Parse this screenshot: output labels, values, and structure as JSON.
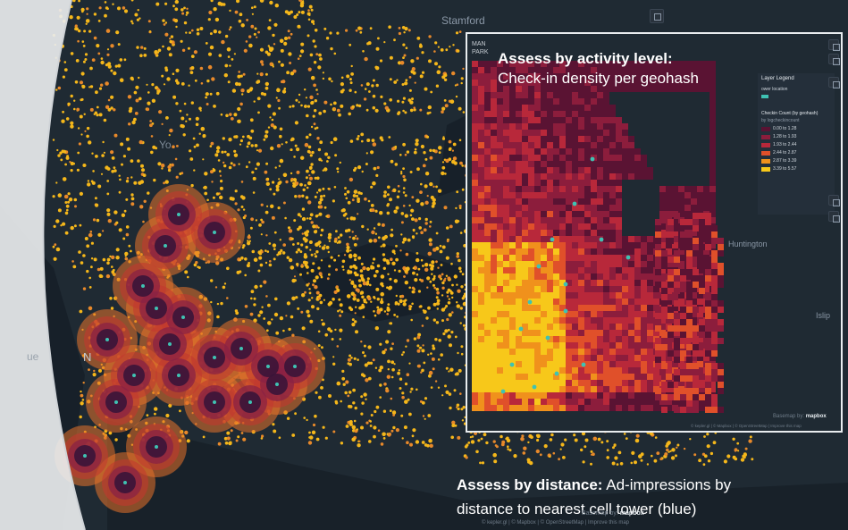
{
  "main_map": {
    "place_labels": [
      "Stamford",
      "Yo",
      "N",
      "ue"
    ],
    "attribution": {
      "basemap_prefix": "Basemap by:",
      "mapbox_logo": "mapbox",
      "credits": "© kepler.gl | © Mapbox | © OpenStreetMap | Improve this map"
    }
  },
  "inset_map": {
    "place_labels": [
      "MAN",
      "PARK",
      "Huntington",
      "Islip"
    ],
    "legend": {
      "title": "Layer Legend",
      "point_layer": "ower location",
      "color_title": "Checkin Count (by geohash)",
      "color_by": "by logcheckincount",
      "ranges": [
        "0.00 to 1.28",
        "1.28 to 1.93",
        "1.93 to 2.44",
        "2.44 to 2.87",
        "2.87 to 3.39",
        "3.39 to 5.57"
      ],
      "colors": [
        "#5a1333",
        "#8c1d3c",
        "#b8283a",
        "#e0502a",
        "#f0911c",
        "#f7c81a"
      ],
      "point_color": "#3fc2b3"
    },
    "attribution": {
      "basemap_prefix": "Basemap by:",
      "mapbox_logo": "mapbox",
      "credits": "© kepler.gl | © Mapbox | © OpenStreetMap | Improve this map"
    }
  },
  "captions": {
    "activity_title": "Assess by activity level:",
    "activity_body": "Check-in density per geohash",
    "distance_title": "Assess by distance:",
    "distance_body_1": " Ad-impressions by",
    "distance_body_2": "distance to nearest cell tower (blue)"
  },
  "colors": {
    "basemap": "#1f2a33",
    "water": "#172029",
    "point_yellow": "#f5b71a",
    "density_dark": "#3a1438",
    "density_mid": "#8a2244",
    "density_orange": "#e8722a",
    "tower": "#3fc2b3"
  }
}
